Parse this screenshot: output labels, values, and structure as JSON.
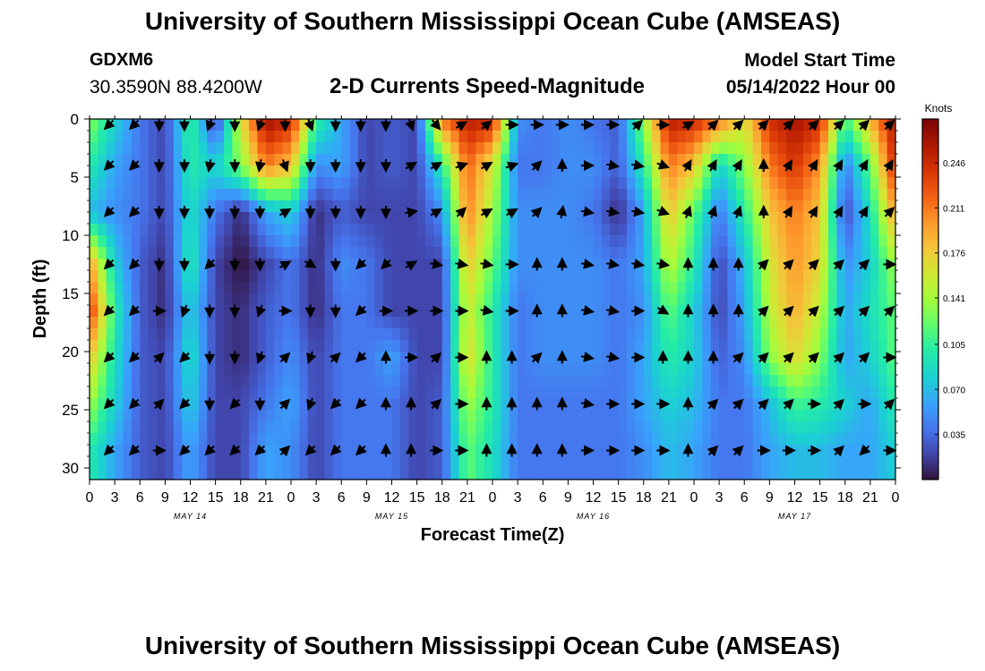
{
  "header": {
    "title": "University of Southern Mississippi Ocean Cube (AMSEAS)",
    "station_id": "GDXM6",
    "station_coords": "30.3590N  88.4200W",
    "chart_title": "2-D Currents Speed-Magnitude",
    "model_start_label": "Model Start Time",
    "model_start_value": "05/14/2022 Hour 00"
  },
  "footer": {
    "title": "University of Southern Mississippi Ocean Cube (AMSEAS)"
  },
  "chart_data": {
    "type": "heatmap",
    "title": "2-D Currents Speed-Magnitude",
    "xlabel": "Forecast Time(Z)",
    "ylabel": "Depth (ft)",
    "xlim": [
      0,
      96
    ],
    "ylim": [
      0,
      31
    ],
    "x_tick_values": [
      0,
      3,
      6,
      9,
      12,
      15,
      18,
      21,
      24,
      27,
      30,
      33,
      36,
      39,
      42,
      45,
      48,
      51,
      54,
      57,
      60,
      63,
      66,
      69,
      72,
      75,
      78,
      81,
      84,
      87,
      90,
      93,
      96
    ],
    "x_tick_labels": [
      "0",
      "3",
      "6",
      "9",
      "12",
      "15",
      "18",
      "21",
      "0",
      "3",
      "6",
      "9",
      "12",
      "15",
      "18",
      "21",
      "0",
      "3",
      "6",
      "9",
      "12",
      "15",
      "18",
      "21",
      "0",
      "3",
      "6",
      "9",
      "12",
      "15",
      "18",
      "21",
      "0"
    ],
    "date_labels": [
      {
        "label": "MAY 14",
        "hour": 12
      },
      {
        "label": "MAY 15",
        "hour": 36
      },
      {
        "label": "MAY 16",
        "hour": 60
      },
      {
        "label": "MAY 17",
        "hour": 84
      }
    ],
    "y_tick_values": [
      0,
      5,
      10,
      15,
      20,
      25,
      30
    ],
    "y_tick_labels": [
      "0",
      "5",
      "10",
      "15",
      "20",
      "25",
      "30"
    ],
    "colorbar": {
      "label": "Knots",
      "min": 0.0,
      "max": 0.28,
      "ticks": [
        0.035,
        0.07,
        0.105,
        0.141,
        0.176,
        0.211,
        0.246
      ],
      "tick_labels": [
        "0.035",
        "0.070",
        "0.105",
        "0.141",
        "0.176",
        "0.211",
        "0.246"
      ]
    },
    "depths_ft": [
      0.5,
      4,
      8,
      12.5,
      16.5,
      20.5,
      24.5,
      28.5
    ],
    "hours": [
      0,
      3,
      6,
      9,
      12,
      15,
      18,
      21,
      24,
      27,
      30,
      33,
      36,
      39,
      42,
      45,
      48,
      51,
      54,
      57,
      60,
      63,
      66,
      69,
      72,
      75,
      78,
      81,
      84,
      87,
      90,
      93,
      96
    ],
    "speed_knots": [
      [
        0.13,
        0.08,
        0.04,
        0.02,
        0.11,
        0.02,
        0.16,
        0.26,
        0.24,
        0.1,
        0.06,
        0.02,
        0.03,
        0.02,
        0.2,
        0.25,
        0.24,
        0.05,
        0.04,
        0.05,
        0.04,
        0.03,
        0.13,
        0.25,
        0.24,
        0.2,
        0.16,
        0.24,
        0.26,
        0.24,
        0.1,
        0.18,
        0.26
      ],
      [
        0.1,
        0.06,
        0.04,
        0.02,
        0.1,
        0.08,
        0.13,
        0.21,
        0.18,
        0.05,
        0.06,
        0.02,
        0.03,
        0.02,
        0.1,
        0.22,
        0.16,
        0.04,
        0.04,
        0.05,
        0.05,
        0.03,
        0.1,
        0.21,
        0.18,
        0.08,
        0.13,
        0.21,
        0.24,
        0.2,
        0.04,
        0.12,
        0.25
      ],
      [
        0.07,
        0.05,
        0.04,
        0.02,
        0.09,
        0.04,
        0.01,
        0.06,
        0.08,
        0.01,
        0.03,
        0.02,
        0.02,
        0.02,
        0.05,
        0.21,
        0.14,
        0.05,
        0.05,
        0.05,
        0.04,
        0.01,
        0.06,
        0.18,
        0.12,
        0.04,
        0.1,
        0.18,
        0.21,
        0.18,
        0.02,
        0.09,
        0.2
      ],
      [
        0.2,
        0.08,
        0.03,
        0.01,
        0.1,
        0.02,
        0.0,
        0.02,
        0.04,
        0.01,
        0.05,
        0.04,
        0.02,
        0.02,
        0.02,
        0.18,
        0.12,
        0.05,
        0.05,
        0.05,
        0.05,
        0.04,
        0.06,
        0.15,
        0.1,
        0.02,
        0.07,
        0.16,
        0.2,
        0.17,
        0.05,
        0.08,
        0.14
      ],
      [
        0.24,
        0.1,
        0.03,
        0.01,
        0.08,
        0.02,
        0.01,
        0.03,
        0.04,
        0.01,
        0.04,
        0.04,
        0.02,
        0.02,
        0.02,
        0.16,
        0.1,
        0.04,
        0.05,
        0.05,
        0.05,
        0.04,
        0.05,
        0.12,
        0.08,
        0.02,
        0.06,
        0.15,
        0.19,
        0.15,
        0.06,
        0.09,
        0.12
      ],
      [
        0.18,
        0.09,
        0.03,
        0.02,
        0.09,
        0.02,
        0.01,
        0.03,
        0.05,
        0.02,
        0.04,
        0.04,
        0.06,
        0.02,
        0.02,
        0.17,
        0.1,
        0.04,
        0.05,
        0.05,
        0.05,
        0.04,
        0.06,
        0.1,
        0.08,
        0.03,
        0.05,
        0.13,
        0.17,
        0.13,
        0.06,
        0.08,
        0.12
      ],
      [
        0.14,
        0.08,
        0.03,
        0.02,
        0.08,
        0.02,
        0.02,
        0.04,
        0.06,
        0.02,
        0.04,
        0.04,
        0.04,
        0.02,
        0.03,
        0.14,
        0.1,
        0.04,
        0.04,
        0.04,
        0.04,
        0.04,
        0.06,
        0.08,
        0.07,
        0.04,
        0.04,
        0.07,
        0.11,
        0.1,
        0.08,
        0.06,
        0.1
      ],
      [
        0.1,
        0.06,
        0.03,
        0.02,
        0.06,
        0.02,
        0.02,
        0.06,
        0.05,
        0.02,
        0.04,
        0.04,
        0.04,
        0.02,
        0.03,
        0.12,
        0.09,
        0.04,
        0.04,
        0.04,
        0.04,
        0.04,
        0.05,
        0.07,
        0.06,
        0.04,
        0.04,
        0.06,
        0.07,
        0.07,
        0.06,
        0.06,
        0.08
      ]
    ],
    "arrow_hours": [
      2.3,
      5.3,
      8.3,
      11.3,
      14.3,
      17.3,
      20.3,
      23.3,
      26.3,
      29.3,
      32.3,
      35.3,
      38.3,
      41.3,
      44.3,
      47.3,
      50.3,
      53.3,
      56.3,
      59.3,
      62.3,
      65.3,
      68.3,
      71.3,
      74.3,
      77.3,
      80.3,
      83.3,
      86.3,
      89.3,
      92.3,
      95.3
    ],
    "arrow_direction_deg": [
      [
        225,
        225,
        180,
        180,
        200,
        180,
        200,
        180,
        160,
        180,
        180,
        180,
        160,
        140,
        60,
        50,
        90,
        90,
        90,
        90,
        90,
        45,
        90,
        60,
        45,
        45,
        45,
        45,
        45,
        45,
        45,
        45
      ],
      [
        225,
        225,
        180,
        180,
        190,
        180,
        190,
        160,
        180,
        180,
        180,
        180,
        60,
        60,
        70,
        60,
        70,
        45,
        0,
        90,
        100,
        100,
        110,
        30,
        30,
        30,
        0,
        30,
        30,
        30,
        30,
        30
      ],
      [
        225,
        225,
        180,
        180,
        180,
        180,
        180,
        60,
        180,
        180,
        180,
        180,
        80,
        60,
        45,
        60,
        60,
        45,
        10,
        100,
        100,
        100,
        110,
        20,
        20,
        20,
        0,
        30,
        30,
        30,
        30,
        45
      ],
      [
        225,
        225,
        180,
        180,
        225,
        180,
        180,
        60,
        120,
        180,
        225,
        225,
        60,
        100,
        100,
        100,
        90,
        0,
        0,
        100,
        100,
        100,
        100,
        0,
        0,
        0,
        45,
        45,
        45,
        45,
        45,
        90
      ],
      [
        225,
        225,
        90,
        200,
        180,
        180,
        200,
        90,
        180,
        180,
        225,
        90,
        90,
        90,
        90,
        100,
        90,
        0,
        0,
        100,
        100,
        90,
        120,
        0,
        0,
        0,
        45,
        45,
        45,
        45,
        45,
        45
      ],
      [
        225,
        225,
        45,
        225,
        180,
        180,
        200,
        45,
        200,
        45,
        225,
        0,
        90,
        45,
        90,
        0,
        0,
        45,
        0,
        100,
        100,
        90,
        0,
        0,
        0,
        45,
        45,
        45,
        45,
        45,
        45,
        90
      ],
      [
        225,
        225,
        45,
        225,
        180,
        225,
        180,
        45,
        200,
        225,
        225,
        0,
        0,
        45,
        90,
        0,
        0,
        0,
        0,
        100,
        90,
        90,
        90,
        0,
        45,
        45,
        45,
        45,
        90,
        45,
        90,
        45
      ],
      [
        225,
        225,
        90,
        225,
        225,
        225,
        225,
        45,
        225,
        225,
        225,
        0,
        0,
        90,
        90,
        0,
        0,
        0,
        0,
        90,
        90,
        90,
        90,
        0,
        45,
        45,
        90,
        90,
        90,
        45,
        225,
        90
      ]
    ]
  }
}
